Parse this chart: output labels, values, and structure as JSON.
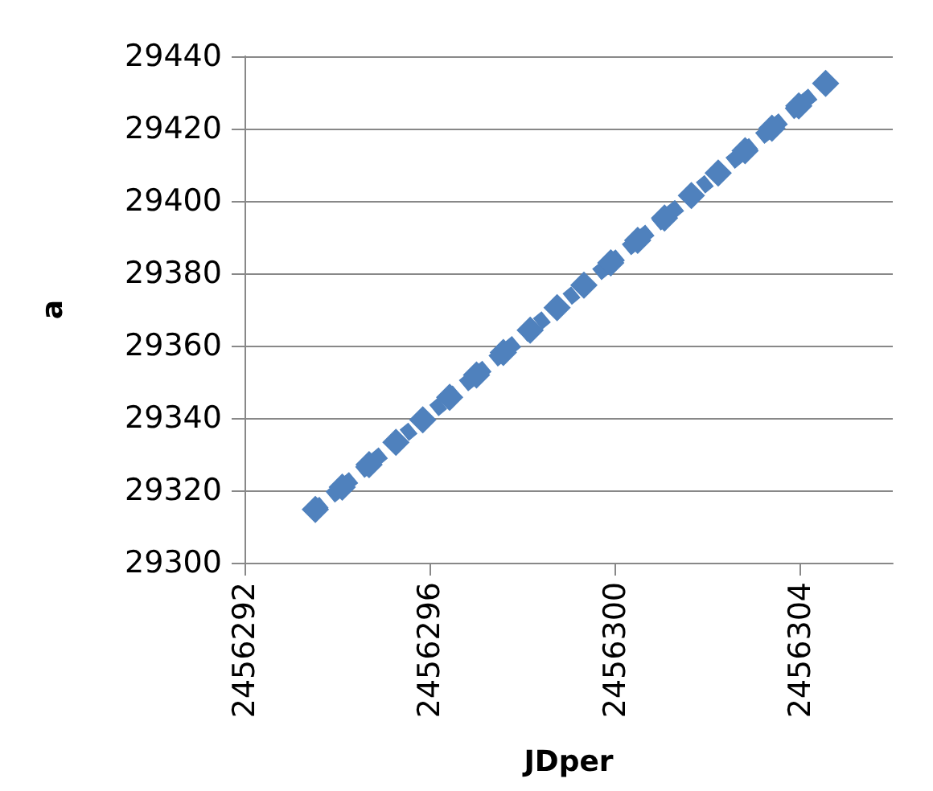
{
  "chart_data": {
    "type": "line",
    "xlabel": "JDper",
    "ylabel": "a",
    "x": [
      2456293.53,
      2456294.11,
      2456294.69,
      2456295.27,
      2456295.85,
      2456296.43,
      2456297.01,
      2456297.59,
      2456298.17,
      2456298.75,
      2456299.33,
      2456299.91,
      2456300.49,
      2456301.07,
      2456301.65,
      2456302.23,
      2456302.81,
      2456303.39,
      2456303.97,
      2456304.55
    ],
    "series": [
      {
        "color": "#4f81bd",
        "values": [
          29314.7,
          29320.9,
          29327.1,
          29333.3,
          29339.5,
          29345.7,
          29351.9,
          29358.1,
          29364.3,
          29370.5,
          29376.7,
          29382.9,
          29389.1,
          29395.3,
          29401.5,
          29407.7,
          29413.9,
          29420.1,
          29426.3,
          29432.5
        ]
      }
    ],
    "xlim": [
      2456292,
      2456306
    ],
    "xticks": [
      2456292,
      2456296,
      2456300,
      2456304
    ],
    "ylim": [
      29300,
      29440
    ],
    "yticks": [
      29300,
      29320,
      29340,
      29360,
      29380,
      29400,
      29420,
      29440
    ],
    "grid": "y",
    "marker": "diamond",
    "line_style": "dashed"
  }
}
